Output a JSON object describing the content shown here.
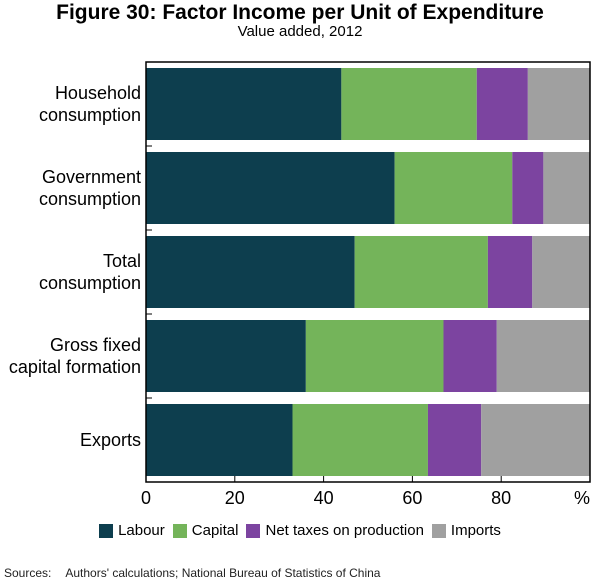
{
  "header": {
    "title": "Figure 30: Factor Income per Unit of Expenditure",
    "subtitle": "Value added, 2012"
  },
  "colors": {
    "Labour": "#0d3e4e",
    "Capital": "#74b45a",
    "Net taxes on production": "#7c44a0",
    "Imports": "#a0a0a0"
  },
  "chart_data": {
    "type": "bar",
    "orientation": "horizontal",
    "stacked": true,
    "title": "Figure 30: Factor Income per Unit of Expenditure",
    "subtitle": "Value added, 2012",
    "categories": [
      [
        "Household",
        "consumption"
      ],
      [
        "Government",
        "consumption"
      ],
      [
        "Total",
        "consumption"
      ],
      [
        "Gross fixed",
        "capital formation"
      ],
      [
        "Exports"
      ]
    ],
    "series": [
      {
        "name": "Labour",
        "values": [
          44,
          56,
          47,
          36,
          33
        ]
      },
      {
        "name": "Capital",
        "values": [
          30.5,
          26.5,
          30,
          31,
          30.5
        ]
      },
      {
        "name": "Net taxes on production",
        "values": [
          11.5,
          7,
          10,
          12,
          12
        ]
      },
      {
        "name": "Imports",
        "values": [
          14,
          10.5,
          13,
          21,
          24.5
        ]
      }
    ],
    "xlim": [
      0,
      100
    ],
    "xticks": [
      "0",
      "20",
      "40",
      "60",
      "80",
      "%"
    ],
    "xlabel": "%",
    "ylabel": "",
    "grid": false,
    "legend_position": "bottom"
  },
  "legend": {
    "items": [
      "Labour",
      "Capital",
      "Net taxes on production",
      "Imports"
    ]
  },
  "footer": {
    "sources_label": "Sources:",
    "sources_text": "Authors' calculations; National Bureau of Statistics of China"
  }
}
